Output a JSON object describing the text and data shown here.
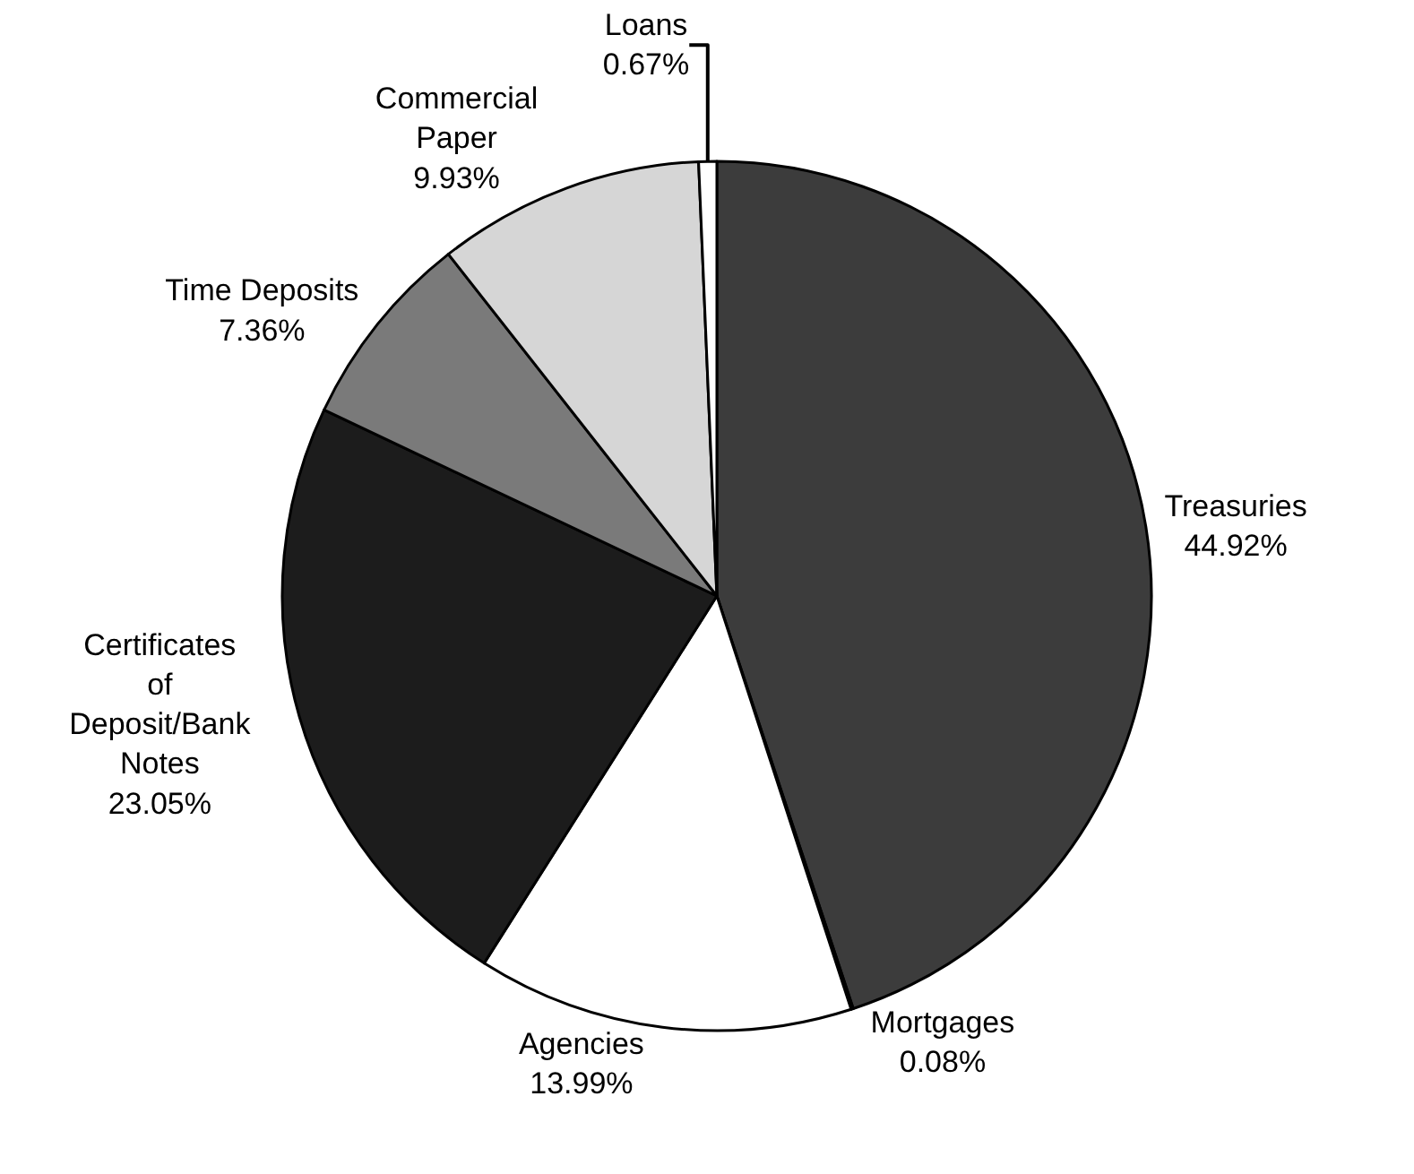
{
  "chart_data": {
    "type": "pie",
    "categories": [
      "Treasuries",
      "Mortgages",
      "Agencies",
      "Certificates of Deposit/Bank Notes",
      "Time Deposits",
      "Commercial Paper",
      "Loans"
    ],
    "values": [
      44.92,
      0.08,
      13.99,
      23.05,
      7.36,
      9.93,
      0.67
    ],
    "value_labels": [
      "44.92%",
      "0.08%",
      "13.99%",
      "23.05%",
      "7.36%",
      "9.93%",
      "0.67%"
    ],
    "colors": [
      "#3c3c3c",
      "#ffffff",
      "#ffffff",
      "#1c1c1c",
      "#7a7a7a",
      "#d6d6d6",
      "#ffffff"
    ],
    "legend": false
  }
}
